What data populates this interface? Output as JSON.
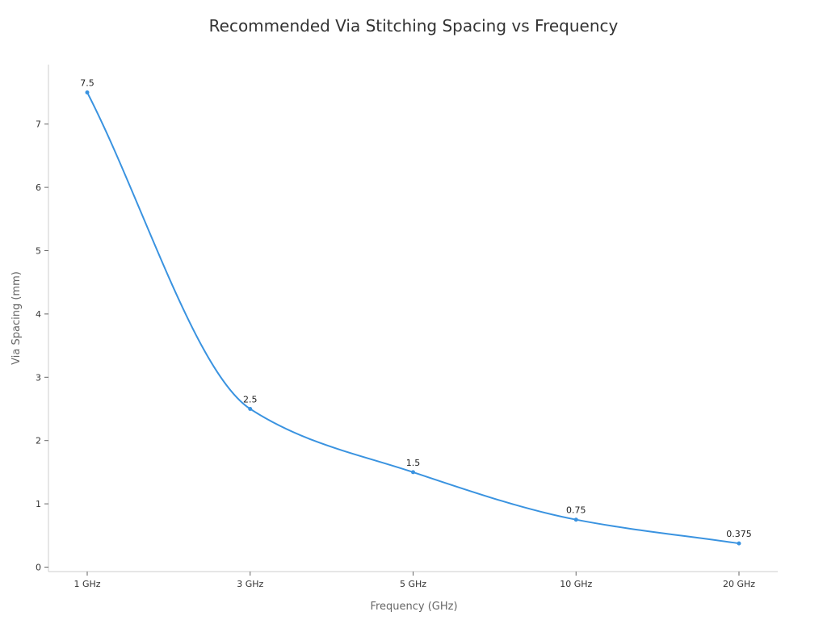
{
  "chart_data": {
    "type": "line",
    "title": "Recommended Via Stitching Spacing vs Frequency",
    "xlabel": "Frequency (GHz)",
    "ylabel": "Via Spacing (mm)",
    "categories": [
      "1 GHz",
      "3 GHz",
      "5 GHz",
      "10 GHz",
      "20 GHz"
    ],
    "series": [
      {
        "values": [
          7.5,
          2.5,
          1.5,
          0.75,
          0.375
        ],
        "color": "#3a93e0"
      }
    ],
    "data_labels": [
      "7.5",
      "2.5",
      "1.5",
      "0.75",
      "0.375"
    ],
    "ylim": [
      0,
      7.5
    ],
    "yticks": [
      0,
      1,
      2,
      3,
      4,
      5,
      6,
      7
    ],
    "grid": false,
    "smooth": true
  }
}
